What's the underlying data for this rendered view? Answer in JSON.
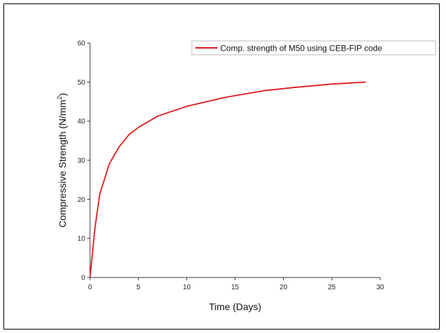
{
  "chart_data": {
    "type": "line",
    "title": "",
    "xlabel": "Time (Days)",
    "ylabel_main": "Compressive Strength (N/mm",
    "ylabel_sup": "2",
    "ylabel_close": ")",
    "xlim": [
      0,
      30
    ],
    "ylim": [
      0,
      60
    ],
    "xticks": [
      0,
      5,
      10,
      15,
      20,
      25,
      30
    ],
    "yticks": [
      0,
      10,
      20,
      30,
      40,
      50,
      60
    ],
    "grid": false,
    "legend_position": "top-right",
    "series": [
      {
        "name": "Comp. strength of M50 using CEB-FIP code",
        "color": "#e0191b",
        "x": [
          0,
          0.5,
          1,
          2,
          3,
          4,
          5,
          7,
          10,
          14,
          18,
          21,
          25,
          28.5
        ],
        "y": [
          0,
          12.5,
          21.3,
          29.1,
          33.4,
          36.5,
          38.4,
          41.3,
          43.8,
          46.1,
          47.8,
          48.6,
          49.5,
          50.0
        ]
      }
    ]
  }
}
